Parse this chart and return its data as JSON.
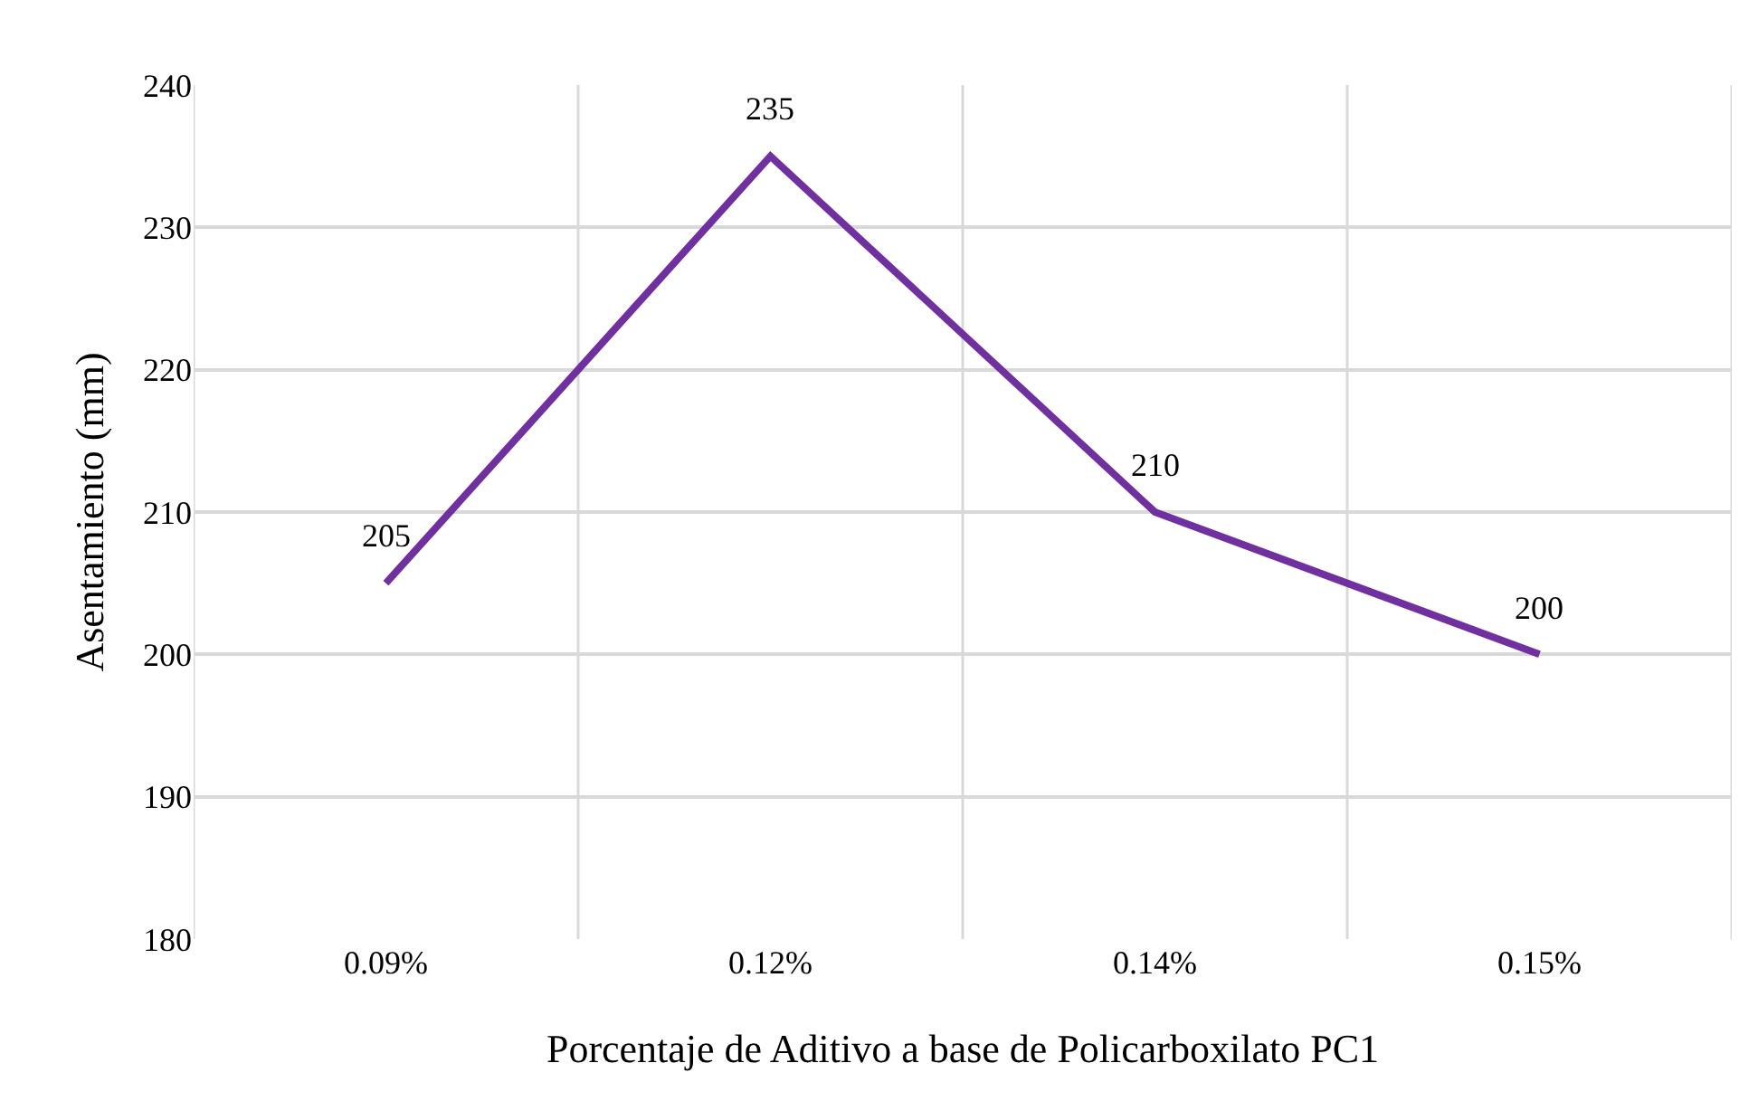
{
  "chart_data": {
    "type": "line",
    "xlabel": "Porcentaje de Aditivo a base de Policarboxilato PC1",
    "ylabel": "Asentamiento (mm)",
    "categories": [
      "0.09%",
      "0.12%",
      "0.14%",
      "0.15%"
    ],
    "series": [
      {
        "color": "#7030a0",
        "values": [
          205,
          235,
          210,
          200
        ]
      }
    ],
    "ylim": [
      180,
      240
    ],
    "yticks": [
      180,
      190,
      200,
      210,
      220,
      230,
      240
    ],
    "grid": true,
    "data_labels": true,
    "marker": "none",
    "line_style": "solid"
  }
}
